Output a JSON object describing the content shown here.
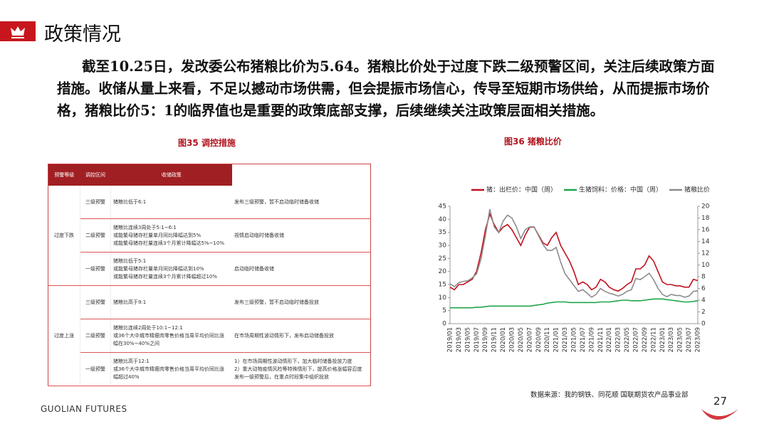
{
  "header": {
    "title": "政策情况"
  },
  "paragraph": "截至10.25日，发改委公布猪粮比价为5.64。猪粮比价处于过度下跌二级预警区间，关注后续政策方面措施。收储从量上来看，不足以撼动市场供需，但会提振市场信心，传导至短期市场供给，从而提振市场价格，猪粮比价5：1的临界值也是重要的政策底部支撑，后续继续关注政策层面相关措施。",
  "figure35": {
    "caption": "图35 调控措施"
  },
  "table": {
    "headers": [
      "预警等级",
      "调控区间",
      "收储政策"
    ],
    "groups": [
      {
        "name": "过度下跌",
        "rows": [
          {
            "level": "三级预警",
            "range": [
              "猪粮比低于6:1"
            ],
            "policy": [
              "发布三级预警，暂不启动临时储备收储"
            ]
          },
          {
            "level": "二级预警",
            "range": [
              "猪粮比连续3周处于5:1~6:1",
              "或能繁母猪存栏量单月同比降幅达到5%",
              "或能繁母猪存栏量连续3个月累计降幅达5%~10%"
            ],
            "policy": [
              "视情启动临时储备收储"
            ]
          },
          {
            "level": "一级预警",
            "range": [
              "猪粮比低于5:1",
              "或能繁母猪存栏量单月同比降幅达到10%",
              "或能繁母猪存栏量连续3个月累计降幅超过10%"
            ],
            "policy": [
              "启动临时储备收储"
            ]
          }
        ]
      },
      {
        "name": "过度上涨",
        "rows": [
          {
            "level": "三级预警",
            "range": [
              "猪粮比高于9:1"
            ],
            "policy": [
              "发布三级预警，暂不启动临时储备投放"
            ]
          },
          {
            "level": "二级预警",
            "range": [
              "猪粮比连续2周处于10:1~12:1",
              "或36个大中城市精瘦肉零售价格当周平均价同比涨",
              "幅在30%~40%之间"
            ],
            "policy": [
              "在市场周期性波动情形下，发布启动储备投放"
            ]
          },
          {
            "level": "一级预警",
            "range": [
              "猪粮比高于12:1",
              "或36个大中城市精瘦肉零售价格当周平均价同比涨",
              "幅超过40%"
            ],
            "policy": [
              "1）在市场周期性波动情形下，加大临时储备投放力度",
              "2）重大动物疫情风险等特殊情形下，提高价格涨幅容忍度",
              "发布一级预警后，在重点时段集中组织投放"
            ]
          }
        ]
      }
    ]
  },
  "chart_data": {
    "type": "line",
    "title": "图36 猪粮比价",
    "categories": [
      "2019/01",
      null,
      "2019/03",
      null,
      "2019/05",
      null,
      "2019/07",
      null,
      "2019/09",
      null,
      "2019/11",
      null,
      "2020/01",
      null,
      "2020/03",
      null,
      "2020/05",
      null,
      "2020/07",
      null,
      "2020/09",
      null,
      "2020/11",
      null,
      "2021/01",
      null,
      "2021/03",
      null,
      "2021/05",
      null,
      "2021/07",
      null,
      "2021/09",
      null,
      "2021/11",
      null,
      "2022/01",
      null,
      "2022/03",
      null,
      "2022/05",
      null,
      "2022/07",
      null,
      "2022/09",
      null,
      "2022/11",
      null,
      "2023/01",
      null,
      "2023/03",
      null,
      "2023/05",
      null,
      "2023/07",
      null,
      "2023/09"
    ],
    "series": [
      {
        "name": "猪：出栏价：中国（周）",
        "color": "#c0121f",
        "axis": "y",
        "values": [
          14,
          13,
          15,
          15,
          16,
          17,
          20,
          27,
          36,
          42,
          38,
          35,
          37,
          38,
          36,
          33,
          30,
          34,
          37,
          37,
          34,
          31,
          30,
          33,
          35,
          30,
          27,
          24,
          20,
          15,
          16,
          15,
          13,
          14,
          17,
          16,
          14,
          13,
          12.5,
          13.5,
          15,
          16,
          21,
          21,
          22.5,
          26,
          24,
          20,
          16,
          15,
          15,
          14.5,
          14.5,
          14,
          14,
          17,
          16.5
        ]
      },
      {
        "name": "生猪饲料：价格：中国（周）",
        "color": "#1fa64a",
        "axis": "y2",
        "values": [
          2.7,
          2.7,
          2.7,
          2.7,
          2.7,
          2.7,
          2.8,
          2.8,
          2.9,
          3.0,
          3.0,
          3.0,
          3.0,
          3.0,
          3.0,
          3.0,
          3.0,
          3.0,
          3.0,
          3.1,
          3.2,
          3.3,
          3.5,
          3.6,
          3.7,
          3.7,
          3.7,
          3.6,
          3.6,
          3.6,
          3.6,
          3.6,
          3.6,
          3.6,
          3.7,
          3.7,
          3.7,
          3.8,
          3.9,
          4.0,
          4.0,
          3.9,
          3.9,
          3.9,
          4.0,
          4.1,
          4.2,
          4.2,
          4.2,
          4.1,
          4.0,
          3.9,
          3.8,
          3.7,
          3.7,
          3.8,
          3.9
        ]
      },
      {
        "name": "猪粮比价",
        "color": "#8c8c8c",
        "axis": "y2",
        "values": [
          6.8,
          6.3,
          7,
          7.2,
          7.3,
          7.8,
          8.5,
          11,
          15,
          19.5,
          16.5,
          15.5,
          17.5,
          18.5,
          18,
          16.5,
          14.5,
          16,
          16.5,
          16.5,
          15,
          13.5,
          12.5,
          12.5,
          13,
          10.5,
          8.5,
          7.5,
          6.5,
          5.5,
          5.8,
          5.2,
          4.5,
          5,
          6,
          5.5,
          5.2,
          5,
          4.7,
          5,
          5.5,
          5.8,
          7.7,
          7.5,
          8,
          8.6,
          7.5,
          6,
          5,
          4.6,
          5,
          4.8,
          4.8,
          4.5,
          4.7,
          5.5,
          5.6
        ]
      }
    ],
    "ylim": [
      0,
      45
    ],
    "yticks": [
      0,
      5,
      10,
      15,
      20,
      25,
      30,
      35,
      40,
      45
    ],
    "y2lim": [
      0,
      20
    ],
    "y2ticks": [
      0,
      2,
      4,
      6,
      8,
      10,
      12,
      14,
      16,
      18,
      20
    ]
  },
  "source": "数据来源：我的钢铁、同花顺 国联期货农产品事业部",
  "footer": {
    "brand": "GUOLIAN FUTURES",
    "page": "27"
  }
}
